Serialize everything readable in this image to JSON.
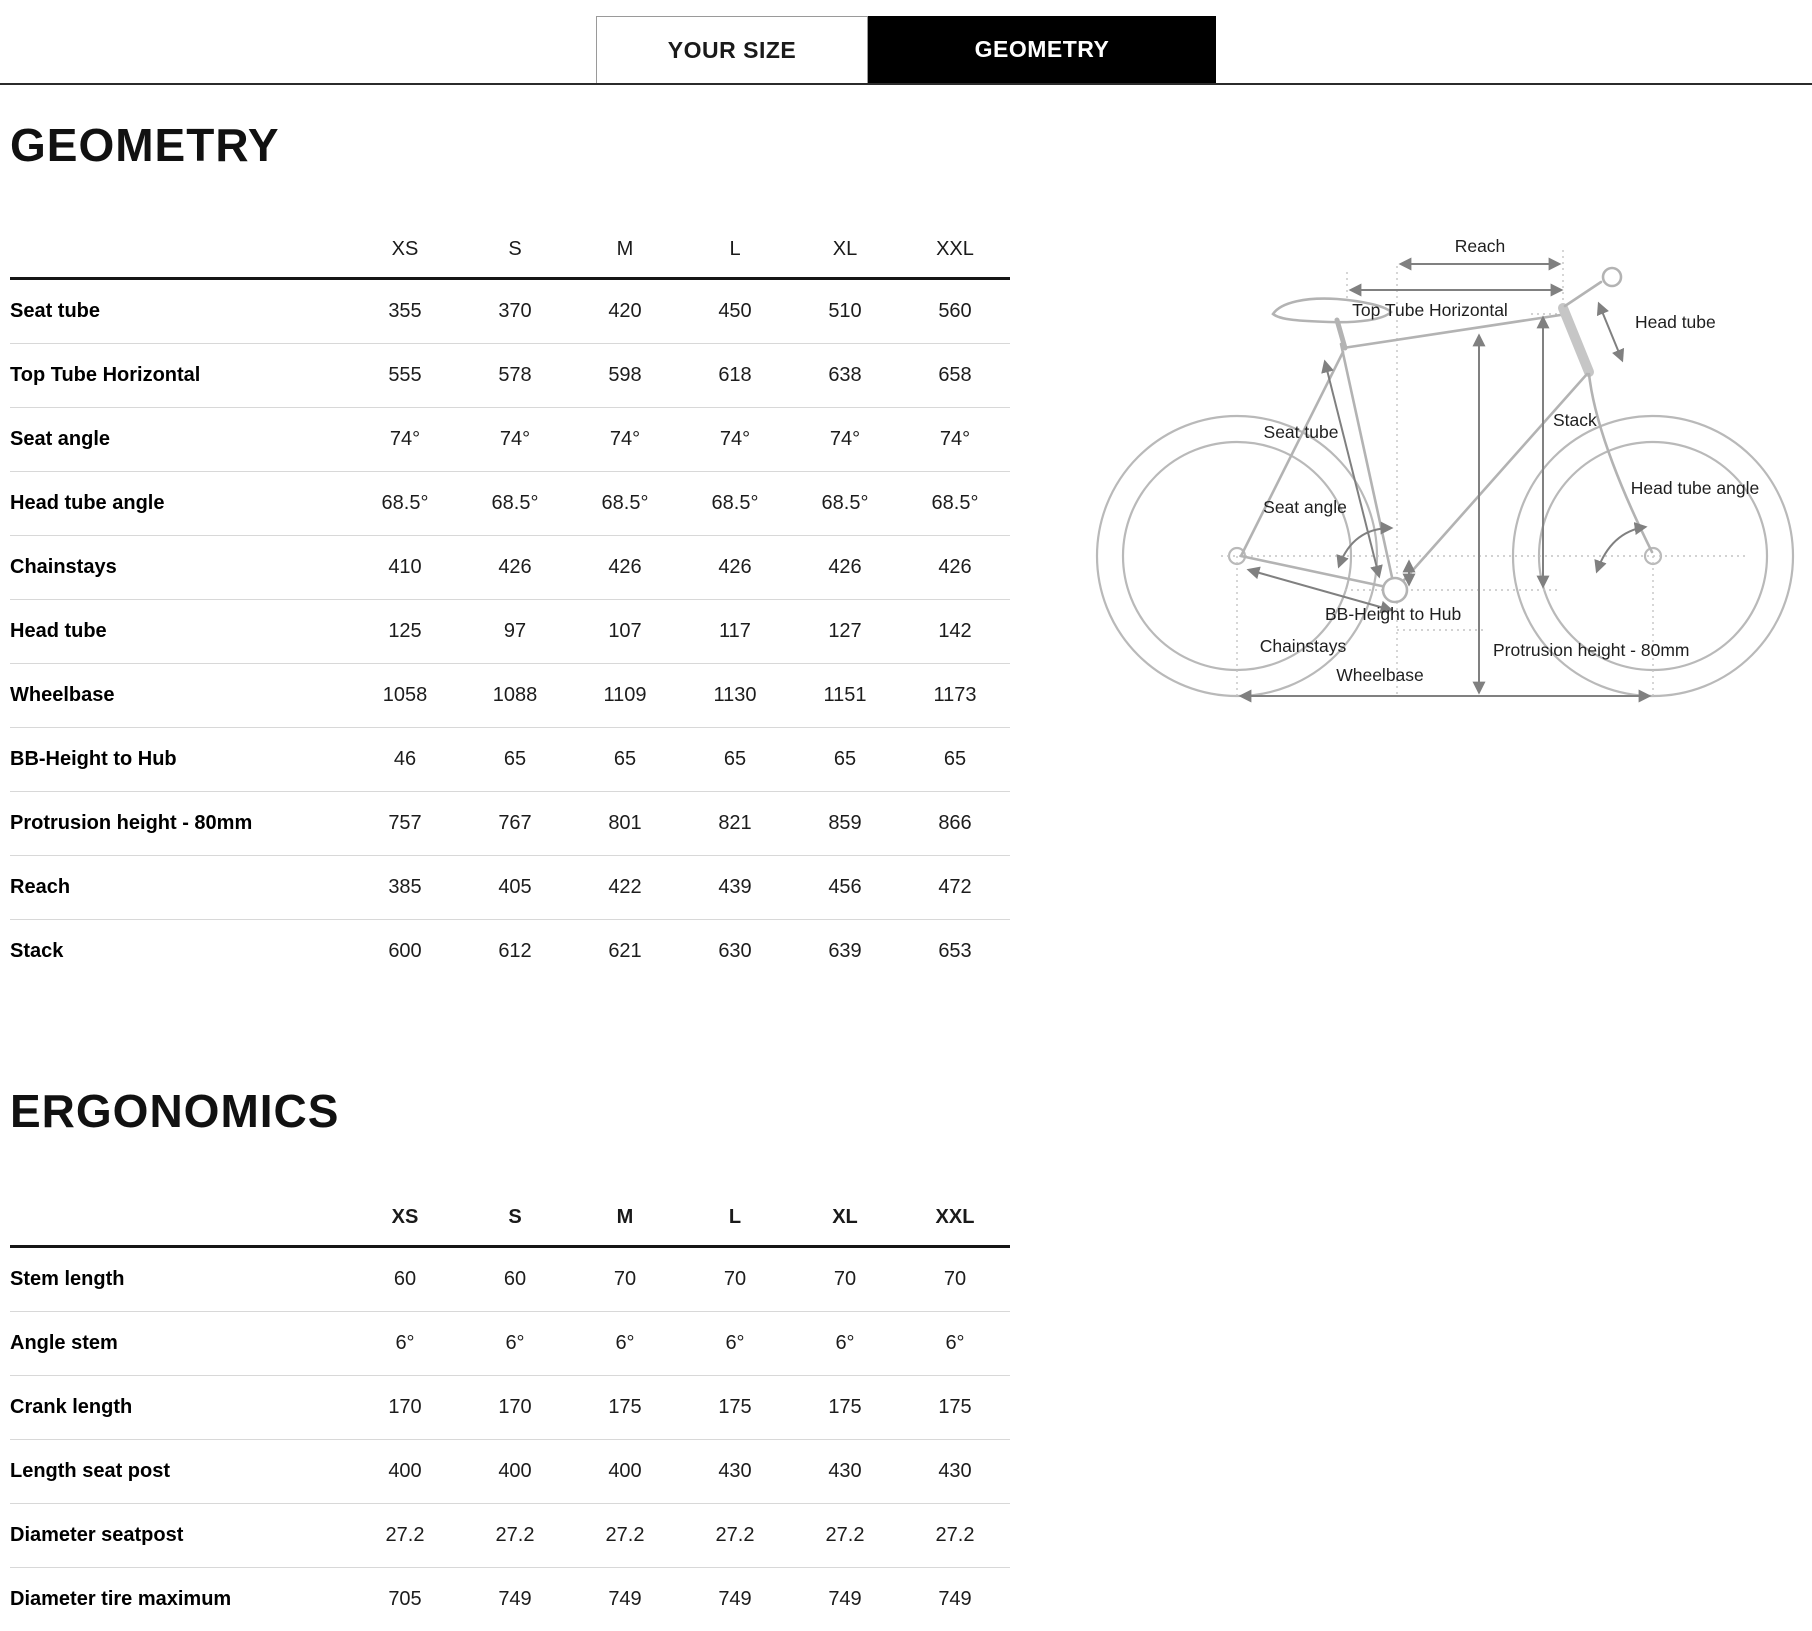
{
  "tabs": [
    {
      "label": "YOUR SIZE",
      "active": false
    },
    {
      "label": "GEOMETRY",
      "active": true
    }
  ],
  "geometry": {
    "title": "GEOMETRY",
    "sizes": [
      "XS",
      "S",
      "M",
      "L",
      "XL",
      "XXL"
    ],
    "rows": [
      {
        "label": "Seat tube",
        "values": [
          "355",
          "370",
          "420",
          "450",
          "510",
          "560"
        ]
      },
      {
        "label": "Top Tube Horizontal",
        "values": [
          "555",
          "578",
          "598",
          "618",
          "638",
          "658"
        ]
      },
      {
        "label": "Seat angle",
        "values": [
          "74°",
          "74°",
          "74°",
          "74°",
          "74°",
          "74°"
        ]
      },
      {
        "label": "Head tube angle",
        "values": [
          "68.5°",
          "68.5°",
          "68.5°",
          "68.5°",
          "68.5°",
          "68.5°"
        ]
      },
      {
        "label": "Chainstays",
        "values": [
          "410",
          "426",
          "426",
          "426",
          "426",
          "426"
        ]
      },
      {
        "label": "Head tube",
        "values": [
          "125",
          "97",
          "107",
          "117",
          "127",
          "142"
        ]
      },
      {
        "label": "Wheelbase",
        "values": [
          "1058",
          "1088",
          "1109",
          "1130",
          "1151",
          "1173"
        ]
      },
      {
        "label": "BB-Height to Hub",
        "values": [
          "46",
          "65",
          "65",
          "65",
          "65",
          "65"
        ]
      },
      {
        "label": "Protrusion height - 80mm",
        "values": [
          "757",
          "767",
          "801",
          "821",
          "859",
          "866"
        ]
      },
      {
        "label": "Reach",
        "values": [
          "385",
          "405",
          "422",
          "439",
          "456",
          "472"
        ]
      },
      {
        "label": "Stack",
        "values": [
          "600",
          "612",
          "621",
          "630",
          "639",
          "653"
        ]
      }
    ]
  },
  "ergonomics": {
    "title": "ERGONOMICS",
    "sizes": [
      "XS",
      "S",
      "M",
      "L",
      "XL",
      "XXL"
    ],
    "rows": [
      {
        "label": "Stem length",
        "values": [
          "60",
          "60",
          "70",
          "70",
          "70",
          "70"
        ]
      },
      {
        "label": "Angle stem",
        "values": [
          "6°",
          "6°",
          "6°",
          "6°",
          "6°",
          "6°"
        ]
      },
      {
        "label": "Crank length",
        "values": [
          "170",
          "170",
          "175",
          "175",
          "175",
          "175"
        ]
      },
      {
        "label": "Length seat post",
        "values": [
          "400",
          "400",
          "400",
          "430",
          "430",
          "430"
        ]
      },
      {
        "label": "Diameter seatpost",
        "values": [
          "27.2",
          "27.2",
          "27.2",
          "27.2",
          "27.2",
          "27.2"
        ]
      },
      {
        "label": "Diameter tire maximum",
        "values": [
          "705",
          "749",
          "749",
          "749",
          "749",
          "749"
        ]
      }
    ]
  },
  "diagram": {
    "labels": {
      "reach": "Reach",
      "head_tube": "Head tube",
      "top_tube": "Top Tube Horizontal",
      "seat_tube": "Seat tube",
      "stack": "Stack",
      "head_tube_angle": "Head tube angle",
      "seat_angle": "Seat angle",
      "bb_height": "BB-Height to Hub",
      "chainstays": "Chainstays",
      "protrusion": "Protrusion height - 80mm",
      "wheelbase": "Wheelbase"
    }
  },
  "colors": {
    "accent_black": "#000000",
    "rule_dark": "#2b2b2b",
    "row_divider": "#d8d8d8",
    "sketch_gray": "#b3b3b3",
    "arrow_gray": "#808080"
  }
}
